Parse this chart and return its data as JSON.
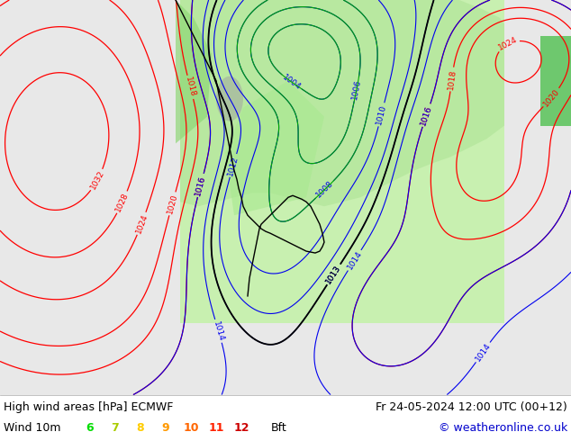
{
  "title_left": "High wind areas [hPa] ECMWF",
  "title_right": "Fr 24-05-2024 12:00 UTC (00+12)",
  "wind_label": "Wind 10m",
  "copyright": "© weatheronline.co.uk",
  "bft_values": [
    "6",
    "7",
    "8",
    "9",
    "10",
    "11",
    "12"
  ],
  "bft_colors": [
    "#00dd00",
    "#aacc00",
    "#ffcc00",
    "#ff9900",
    "#ff6600",
    "#ff2200",
    "#cc0000"
  ],
  "bft_unit": "Bft",
  "bg_color": "#ffffff",
  "ocean_color": "#e8e8e8",
  "land_color": "#b8e8a0",
  "land_color2": "#c8f0b0",
  "gray_land": "#b0b0b0",
  "contour_red": "#ff0000",
  "contour_blue": "#0000ee",
  "contour_black": "#000000",
  "contour_green": "#00aa00",
  "figwidth": 6.34,
  "figheight": 4.9,
  "dpi": 100,
  "label_fontsize": 9,
  "legend_fontsize": 9
}
